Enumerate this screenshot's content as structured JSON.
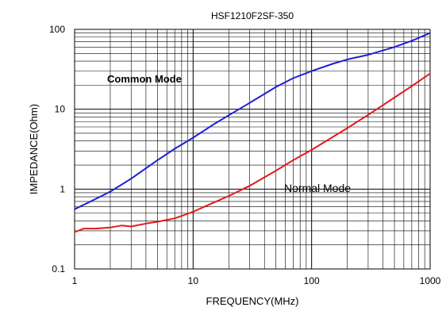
{
  "chart_data": {
    "type": "line",
    "title": "HSF1210F2SF-350",
    "xlabel": "FREQUENCY(MHz)",
    "ylabel": "IMPEDANCE(Ohm)",
    "x_scale": "log",
    "y_scale": "log",
    "xlim": [
      1,
      1000
    ],
    "ylim": [
      0.1,
      100
    ],
    "x_ticks": [
      "1",
      "10",
      "100",
      "1000"
    ],
    "y_ticks": [
      "0.1",
      "1",
      "10",
      "100"
    ],
    "grid": true,
    "series": [
      {
        "name": "Common Mode",
        "color": "#1f1fd6",
        "x": [
          1,
          1.5,
          2,
          3,
          5,
          7,
          10,
          15,
          20,
          30,
          50,
          70,
          100,
          150,
          200,
          300,
          500,
          700,
          1000
        ],
        "y": [
          0.56,
          0.75,
          0.93,
          1.35,
          2.3,
          3.2,
          4.4,
          6.5,
          8.4,
          12,
          19,
          24.5,
          30,
          37,
          42,
          48,
          60,
          72,
          90
        ]
      },
      {
        "name": "Normal Mode",
        "color": "#e31a1a",
        "x": [
          1,
          1.2,
          1.5,
          2,
          2.5,
          3,
          4,
          5,
          7,
          10,
          15,
          20,
          30,
          50,
          70,
          100,
          200,
          300,
          500,
          700,
          1000
        ],
        "y": [
          0.29,
          0.32,
          0.32,
          0.33,
          0.35,
          0.34,
          0.37,
          0.39,
          0.43,
          0.52,
          0.68,
          0.82,
          1.1,
          1.7,
          2.3,
          3.1,
          5.8,
          8.5,
          14,
          19.5,
          28
        ]
      }
    ],
    "annotations": [
      {
        "text": "Common Mode",
        "color": "#1f1fd6"
      },
      {
        "text": "Normal Mode",
        "color": "#e31a1a"
      }
    ]
  }
}
